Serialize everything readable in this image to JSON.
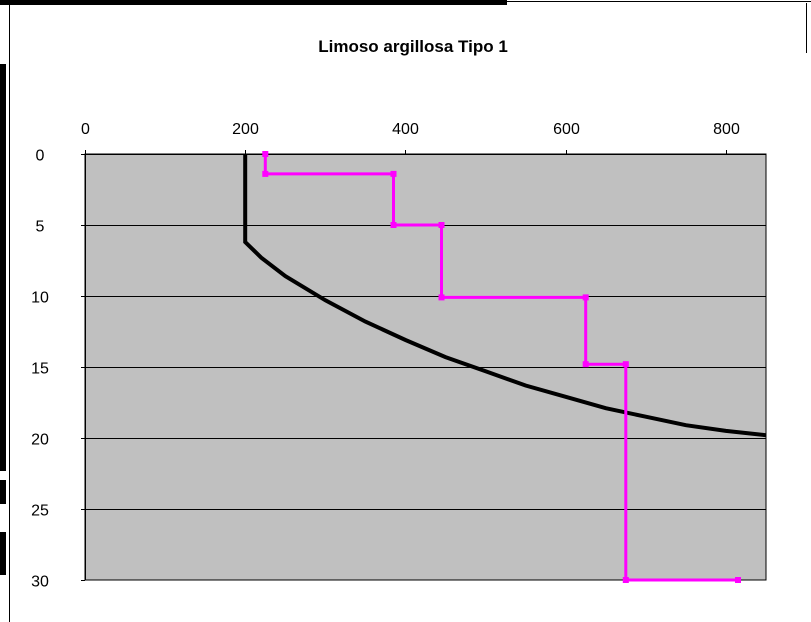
{
  "chart_data": {
    "type": "line",
    "title": "Limoso argillosa Tipo 1",
    "xlabel": "",
    "ylabel": "",
    "xlim": [
      0,
      850
    ],
    "ylim": [
      0,
      30
    ],
    "y_inverted": true,
    "x_axis_position": "top",
    "x_ticks": [
      0,
      200,
      400,
      600,
      800
    ],
    "y_ticks": [
      0,
      5,
      10,
      15,
      20,
      25,
      30
    ],
    "grid": "horizontal",
    "plot_background": "#c0c0c0",
    "legend": "none",
    "series": [
      {
        "color": "#000000",
        "marker": "none",
        "points": [
          [
            200,
            0
          ],
          [
            200,
            6.2
          ],
          [
            220,
            7.3
          ],
          [
            250,
            8.6
          ],
          [
            300,
            10.3
          ],
          [
            350,
            11.8
          ],
          [
            400,
            13.1
          ],
          [
            450,
            14.3
          ],
          [
            500,
            15.3
          ],
          [
            550,
            16.3
          ],
          [
            600,
            17.1
          ],
          [
            650,
            17.9
          ],
          [
            700,
            18.5
          ],
          [
            750,
            19.1
          ],
          [
            800,
            19.5
          ],
          [
            850,
            19.8
          ]
        ]
      },
      {
        "color": "#ff00ff",
        "marker": "square",
        "points": [
          [
            225,
            0
          ],
          [
            225,
            1.4
          ],
          [
            385,
            1.4
          ],
          [
            385,
            5
          ],
          [
            445,
            5
          ],
          [
            445,
            10.1
          ],
          [
            625,
            10.1
          ],
          [
            625,
            14.8
          ],
          [
            675,
            14.8
          ],
          [
            675,
            30
          ],
          [
            815,
            30
          ]
        ]
      }
    ]
  }
}
